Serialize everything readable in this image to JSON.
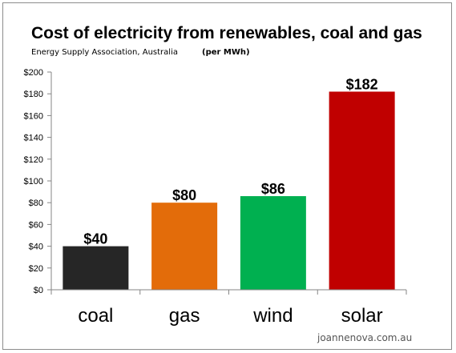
{
  "chart_data": {
    "type": "bar",
    "title": "Cost of electricity from renewables, coal and gas",
    "subtitle": "Energy Supply Association, Australia",
    "unit_note": "(per MWh)",
    "categories": [
      "coal",
      "gas",
      "wind",
      "solar"
    ],
    "values": [
      40,
      80,
      86,
      182
    ],
    "data_labels": [
      "$40",
      "$80",
      "$86",
      "$182"
    ],
    "bar_colors": [
      "#262626",
      "#e36c0a",
      "#00b050",
      "#c00000"
    ],
    "ylim": [
      0,
      200
    ],
    "y_ticks": [
      0,
      20,
      40,
      60,
      80,
      100,
      120,
      140,
      160,
      180,
      200
    ],
    "y_tick_labels": [
      "$0",
      "$20",
      "$40",
      "$60",
      "$80",
      "$100",
      "$120",
      "$140",
      "$160",
      "$180",
      "$200"
    ],
    "xlabel": "",
    "ylabel": "",
    "grid": false,
    "legend": "none"
  },
  "watermark": "joannenova.com.au"
}
